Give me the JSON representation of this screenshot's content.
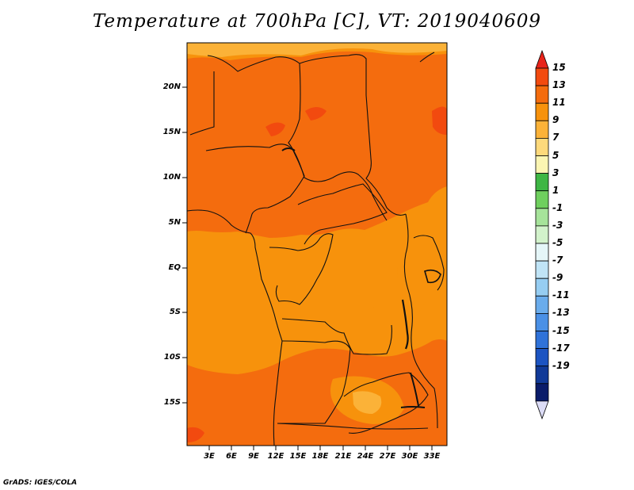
{
  "title": "Temperature at 700hPa [C], VT: 2019040609",
  "credit": "GrADS: IGES/COLA",
  "map": {
    "lat_ticks": [
      "20N",
      "15N",
      "10N",
      "5N",
      "EQ",
      "5S",
      "10S",
      "15S"
    ],
    "lon_ticks": [
      "3E",
      "6E",
      "9E",
      "12E",
      "15E",
      "18E",
      "21E",
      "24E",
      "27E",
      "30E",
      "33E"
    ]
  },
  "colorbar": {
    "labels": [
      "15",
      "13",
      "11",
      "9",
      "7",
      "5",
      "3",
      "1",
      "-1",
      "-3",
      "-5",
      "-7",
      "-9",
      "-11",
      "-13",
      "-15",
      "-17",
      "-19"
    ],
    "colors": [
      "#e8231a",
      "#f24a0f",
      "#f46c0e",
      "#f7920c",
      "#fbb238",
      "#fdd97b",
      "#fbf5b2",
      "#3eb644",
      "#6fcf5e",
      "#a6e39a",
      "#d2f2cb",
      "#e5f6f8",
      "#c0e4f6",
      "#96cdf2",
      "#6aacec",
      "#4a90e6",
      "#2f72d9",
      "#1c54c2",
      "#113a98",
      "#0a1c6a",
      "#dcdcf6"
    ]
  }
}
